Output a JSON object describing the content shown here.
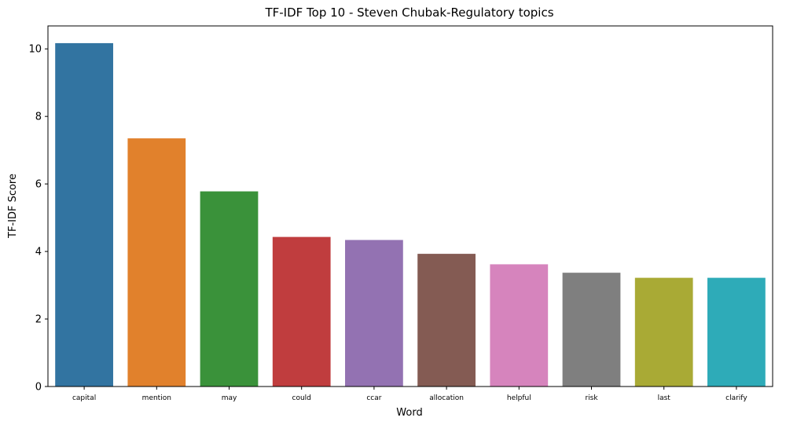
{
  "chart_data": {
    "type": "bar",
    "title": "TF-IDF Top 10 - Steven Chubak-Regulatory topics",
    "xlabel": "Word",
    "ylabel": "TF-IDF Score",
    "categories": [
      "capital",
      "mention",
      "may",
      "could",
      "ccar",
      "allocation",
      "helpful",
      "risk",
      "last",
      "clarify"
    ],
    "values": [
      10.17,
      7.35,
      5.78,
      4.43,
      4.34,
      3.93,
      3.62,
      3.37,
      3.22,
      3.22
    ],
    "colors": [
      "#3274a1",
      "#e1812c",
      "#3a923a",
      "#c03d3e",
      "#9372b2",
      "#845b53",
      "#d684bd",
      "#7f7f7f",
      "#a9aa35",
      "#2eabb8"
    ],
    "ylim": [
      0,
      10.68
    ],
    "yticks": [
      0,
      2,
      4,
      6,
      8,
      10
    ],
    "grid": false,
    "legend": "none"
  }
}
